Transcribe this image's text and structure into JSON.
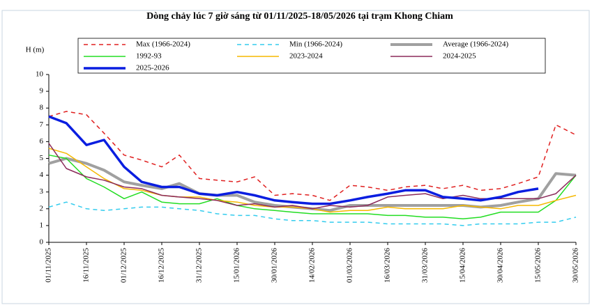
{
  "chart_data": {
    "type": "line",
    "title": "Dòng chảy lúc 7 giờ sáng từ 01/11/2025-18/05/2026 tại trạm Khong Chiam",
    "y_label": "H (m)",
    "x": [
      "01/11/2025",
      "08/11/2025",
      "16/11/2025",
      "23/11/2025",
      "01/12/2025",
      "08/12/2025",
      "16/12/2025",
      "23/12/2025",
      "31/12/2025",
      "07/01/2026",
      "15/01/2026",
      "22/01/2026",
      "30/01/2026",
      "06/02/2026",
      "14/02/2026",
      "21/02/2026",
      "01/03/2026",
      "08/03/2026",
      "16/03/2026",
      "23/03/2026",
      "31/03/2026",
      "07/04/2026",
      "15/04/2026",
      "22/04/2026",
      "30/04/2026",
      "07/05/2026",
      "15/05/2026",
      "22/05/2026",
      "30/05/2026"
    ],
    "xlim": [
      "01/11/2025",
      "30/05/2026"
    ],
    "xticks": [
      "01/11/2025",
      "16/11/2025",
      "01/12/2025",
      "16/12/2025",
      "31/12/2025",
      "15/01/2026",
      "30/01/2026",
      "14/02/2026",
      "01/03/2026",
      "16/03/2026",
      "31/03/2026",
      "15/04/2026",
      "30/04/2026",
      "15/05/2026",
      "30/05/2026"
    ],
    "ylim": [
      0,
      10
    ],
    "yticks": [
      0,
      1,
      2,
      3,
      4,
      5,
      6,
      7,
      8,
      9,
      10
    ],
    "series": [
      {
        "name": "Max (1966-2024)",
        "color": "#e02020",
        "dash": true,
        "width": 1.5,
        "values": [
          7.5,
          7.8,
          7.6,
          6.5,
          5.2,
          4.9,
          4.5,
          5.2,
          3.8,
          3.7,
          3.6,
          3.9,
          2.8,
          2.9,
          2.8,
          2.5,
          3.4,
          3.3,
          3.1,
          3.3,
          3.4,
          3.2,
          3.4,
          3.1,
          3.2,
          3.5,
          3.9,
          7.0,
          6.4
        ]
      },
      {
        "name": "Min (1966-2024)",
        "color": "#33ccee",
        "dash": true,
        "width": 1.5,
        "values": [
          2.1,
          2.4,
          2.0,
          1.9,
          2.0,
          2.1,
          2.1,
          2.0,
          1.9,
          1.7,
          1.6,
          1.6,
          1.4,
          1.3,
          1.3,
          1.2,
          1.2,
          1.2,
          1.1,
          1.1,
          1.1,
          1.1,
          1.0,
          1.1,
          1.1,
          1.1,
          1.2,
          1.2,
          1.5
        ]
      },
      {
        "name": "Average (1966-2024)",
        "color": "#a0a0a0",
        "dash": false,
        "width": 4,
        "values": [
          4.7,
          5.0,
          4.7,
          4.3,
          3.6,
          3.4,
          3.2,
          3.5,
          2.9,
          2.8,
          2.8,
          2.4,
          2.2,
          2.1,
          2.0,
          1.9,
          2.2,
          2.2,
          2.2,
          2.2,
          2.2,
          2.2,
          2.2,
          2.1,
          2.2,
          2.4,
          2.6,
          4.1,
          4.0
        ]
      },
      {
        "name": "1992-93",
        "color": "#22dd22",
        "dash": false,
        "width": 1.5,
        "values": [
          5.2,
          5.0,
          3.8,
          3.3,
          2.6,
          3.0,
          2.4,
          2.3,
          2.3,
          2.6,
          2.2,
          2.0,
          1.9,
          1.8,
          1.7,
          1.7,
          1.7,
          1.7,
          1.6,
          1.6,
          1.5,
          1.5,
          1.4,
          1.5,
          1.8,
          1.8,
          1.8,
          2.5,
          4.0
        ]
      },
      {
        "name": "2023-2024",
        "color": "#f5b800",
        "dash": false,
        "width": 1.5,
        "values": [
          5.6,
          5.3,
          4.5,
          3.8,
          3.2,
          3.1,
          2.8,
          2.7,
          2.7,
          2.5,
          2.4,
          2.2,
          2.1,
          2.1,
          2.0,
          1.8,
          1.9,
          1.9,
          2.1,
          2.0,
          2.0,
          2.0,
          2.2,
          2.1,
          2.0,
          2.2,
          2.2,
          2.5,
          2.8
        ]
      },
      {
        "name": "2024-2025",
        "color": "#8b2a5a",
        "dash": false,
        "width": 1.5,
        "values": [
          5.9,
          4.4,
          3.9,
          3.7,
          3.3,
          3.2,
          2.8,
          2.7,
          2.6,
          2.5,
          2.2,
          2.3,
          2.1,
          2.2,
          2.0,
          2.2,
          2.1,
          2.2,
          2.7,
          2.8,
          2.9,
          2.6,
          2.8,
          2.6,
          2.6,
          2.6,
          2.6,
          2.9,
          4.0
        ]
      },
      {
        "name": "2025-2026",
        "color": "#0a1ee0",
        "dash": false,
        "width": 3.5,
        "values": [
          7.5,
          7.1,
          5.8,
          6.1,
          4.5,
          3.6,
          3.3,
          3.3,
          2.9,
          2.8,
          3.0,
          2.8,
          2.5,
          2.4,
          2.3,
          2.3,
          2.5,
          2.7,
          2.9,
          3.1,
          3.1,
          2.7,
          2.6,
          2.5,
          2.7,
          3.0,
          3.2,
          null,
          null
        ]
      }
    ]
  }
}
